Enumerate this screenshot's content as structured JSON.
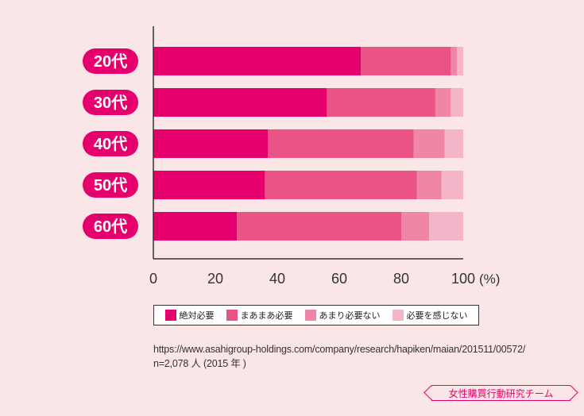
{
  "chart_data": {
    "type": "bar",
    "orientation": "horizontal",
    "stacked": true,
    "categories": [
      "20代",
      "30代",
      "40代",
      "50代",
      "60代"
    ],
    "series": [
      {
        "name": "絶対必要",
        "color": "#e5006e",
        "values": [
          67,
          56,
          37,
          36,
          27
        ]
      },
      {
        "name": "まあまあ必要",
        "color": "#ea5386",
        "values": [
          29,
          35,
          47,
          49,
          53
        ]
      },
      {
        "name": "あまり必要ない",
        "color": "#ef86a5",
        "values": [
          2,
          5,
          10,
          8,
          9
        ]
      },
      {
        "name": "必要を感じない",
        "color": "#f4b5c8",
        "values": [
          2,
          4,
          6,
          7,
          11
        ]
      }
    ],
    "x_ticks": [
      "0",
      "20",
      "40",
      "60",
      "80",
      "100"
    ],
    "x_unit": "(%)",
    "xlim": [
      0,
      100
    ],
    "legend_position": "bottom"
  },
  "source": {
    "line1": "https://www.asahigroup-holdings.com/company/research/hapiken/maian/201511/00572/",
    "line2": "n=2,078 人 (2015 年 )"
  },
  "team_label": "女性購買行動研究チーム"
}
